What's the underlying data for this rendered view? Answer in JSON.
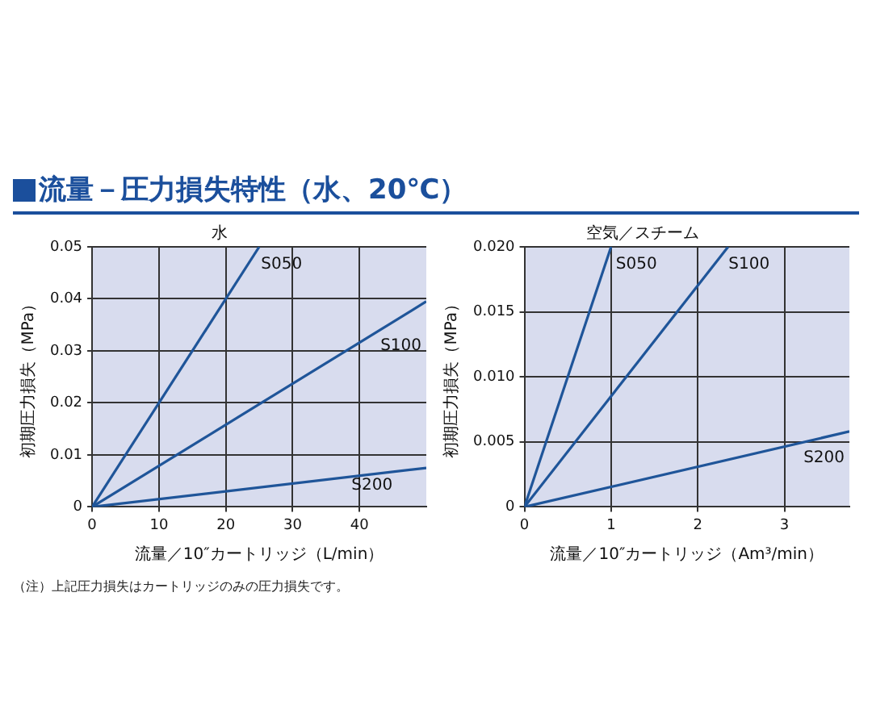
{
  "chart_data": [
    {
      "type": "line",
      "title": "流量－圧力損失特性（水、20℃）",
      "subtitle": "水",
      "xlabel": "流量／10″カートリッジ（L/min）",
      "ylabel": "初期圧力損失（MPa）",
      "annotations": [
        "（注）上記圧力損失はカートリッジのみの圧力損失です。"
      ],
      "xlim": [
        0,
        50
      ],
      "xticks": [
        0,
        10,
        20,
        30,
        40
      ],
      "ylim": [
        0,
        0.05
      ],
      "yticks": [
        0,
        0.01,
        0.02,
        0.03,
        0.04,
        0.05
      ],
      "grid": true,
      "legend": false,
      "marker": "none",
      "line_style": "solid",
      "series": [
        {
          "name": "S050",
          "color": "#1f5599",
          "x": [
            0,
            25
          ],
          "values": [
            0,
            0.05
          ]
        },
        {
          "name": "S100",
          "color": "#1f5599",
          "x": [
            0,
            50
          ],
          "values": [
            0,
            0.0395
          ]
        },
        {
          "name": "S200",
          "color": "#1f5599",
          "x": [
            0,
            50
          ],
          "values": [
            0,
            0.0075
          ]
        }
      ]
    },
    {
      "type": "line",
      "title": "空気／スチーム",
      "xlabel": "流量／10″カートリッジ（Am³/min）",
      "ylabel": "初期圧力損失（MPa）",
      "xlim": [
        0,
        3.75
      ],
      "xticks": [
        0,
        1,
        2,
        3
      ],
      "ylim": [
        0,
        0.02
      ],
      "yticks": [
        0,
        {
          "value": 0.005,
          "label": "0.005"
        },
        {
          "value": 0.01,
          "label": "0.010"
        },
        {
          "value": 0.015,
          "label": "0.015"
        },
        {
          "value": 0.02,
          "label": "0.020"
        }
      ],
      "grid": true,
      "legend": false,
      "marker": "none",
      "line_style": "solid",
      "series": [
        {
          "name": "S050",
          "color": "#1f5599",
          "x": [
            0,
            1
          ],
          "values": [
            0,
            0.02
          ]
        },
        {
          "name": "S100",
          "color": "#1f5599",
          "x": [
            0,
            2.35
          ],
          "values": [
            0,
            0.02
          ]
        },
        {
          "name": "S200",
          "color": "#1f5599",
          "x": [
            0,
            3.75
          ],
          "values": [
            0,
            0.0058
          ]
        }
      ]
    }
  ]
}
